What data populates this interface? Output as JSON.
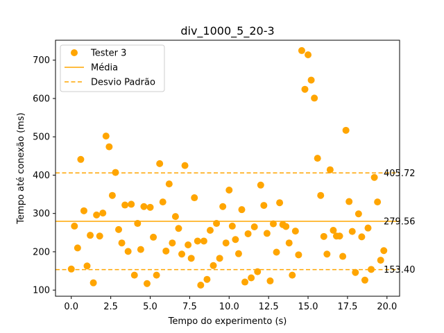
{
  "chart_data": {
    "type": "scatter",
    "title": "div_1000_5_20-3",
    "xlabel": "Tempo do experimento (s)",
    "ylabel": "Tempo até conexão (ms)",
    "xlim": [
      -1.0,
      20.8
    ],
    "ylim": [
      84,
      752
    ],
    "xticks": [
      0.0,
      2.5,
      5.0,
      7.5,
      10.0,
      12.5,
      15.0,
      17.5,
      20.0
    ],
    "xtick_labels": [
      "0.0",
      "2.5",
      "5.0",
      "7.5",
      "10.0",
      "12.5",
      "15.0",
      "17.5",
      "20.0"
    ],
    "yticks": [
      100,
      200,
      300,
      400,
      500,
      600,
      700
    ],
    "ytick_labels": [
      "100",
      "200",
      "300",
      "400",
      "500",
      "600",
      "700"
    ],
    "grid": false,
    "legend_position": "top-left",
    "legend": {
      "scatter_label": "Tester 3",
      "mean_label": "Média",
      "std_label": "Desvio Padrão"
    },
    "colors": {
      "series": "#ffa500",
      "lines": "#ffa500"
    },
    "reference_lines": {
      "mean": 279.56,
      "upper": 405.72,
      "lower": 153.4,
      "mean_label": "279.56",
      "upper_label": "405.72",
      "lower_label": "153.40"
    },
    "series": [
      {
        "name": "Tester 3",
        "points": [
          [
            0.0,
            155
          ],
          [
            0.2,
            267
          ],
          [
            0.4,
            210
          ],
          [
            0.6,
            441
          ],
          [
            0.8,
            307
          ],
          [
            1.0,
            163
          ],
          [
            1.2,
            243
          ],
          [
            1.4,
            119
          ],
          [
            1.6,
            296
          ],
          [
            1.8,
            241
          ],
          [
            2.0,
            301
          ],
          [
            2.2,
            502
          ],
          [
            2.4,
            474
          ],
          [
            2.6,
            347
          ],
          [
            2.8,
            407
          ],
          [
            3.0,
            258
          ],
          [
            3.2,
            223
          ],
          [
            3.4,
            322
          ],
          [
            3.6,
            201
          ],
          [
            3.8,
            324
          ],
          [
            4.0,
            139
          ],
          [
            4.2,
            274
          ],
          [
            4.4,
            206
          ],
          [
            4.6,
            318
          ],
          [
            4.8,
            117
          ],
          [
            5.0,
            316
          ],
          [
            5.2,
            238
          ],
          [
            5.4,
            139
          ],
          [
            5.6,
            430
          ],
          [
            5.8,
            330
          ],
          [
            6.0,
            202
          ],
          [
            6.2,
            377
          ],
          [
            6.4,
            223
          ],
          [
            6.6,
            292
          ],
          [
            6.8,
            261
          ],
          [
            7.0,
            194
          ],
          [
            7.2,
            425
          ],
          [
            7.4,
            218
          ],
          [
            7.6,
            183
          ],
          [
            7.8,
            341
          ],
          [
            8.0,
            228
          ],
          [
            8.2,
            113
          ],
          [
            8.4,
            228
          ],
          [
            8.6,
            128
          ],
          [
            8.8,
            256
          ],
          [
            9.0,
            164
          ],
          [
            9.2,
            274
          ],
          [
            9.4,
            183
          ],
          [
            9.6,
            318
          ],
          [
            9.8,
            223
          ],
          [
            10.0,
            361
          ],
          [
            10.2,
            267
          ],
          [
            10.4,
            232
          ],
          [
            10.6,
            195
          ],
          [
            10.8,
            310
          ],
          [
            11.0,
            121
          ],
          [
            11.2,
            247
          ],
          [
            11.4,
            132
          ],
          [
            11.6,
            265
          ],
          [
            11.8,
            148
          ],
          [
            12.0,
            374
          ],
          [
            12.2,
            321
          ],
          [
            12.4,
            248
          ],
          [
            12.6,
            124
          ],
          [
            12.8,
            273
          ],
          [
            13.0,
            199
          ],
          [
            13.2,
            328
          ],
          [
            13.4,
            271
          ],
          [
            13.6,
            266
          ],
          [
            13.8,
            223
          ],
          [
            14.0,
            139
          ],
          [
            14.2,
            254
          ],
          [
            14.4,
            192
          ],
          [
            14.6,
            725
          ],
          [
            14.8,
            624
          ],
          [
            15.0,
            714
          ],
          [
            15.2,
            648
          ],
          [
            15.4,
            601
          ],
          [
            15.6,
            444
          ],
          [
            15.8,
            347
          ],
          [
            16.0,
            240
          ],
          [
            16.2,
            194
          ],
          [
            16.4,
            414
          ],
          [
            16.6,
            256
          ],
          [
            16.8,
            241
          ],
          [
            17.0,
            241
          ],
          [
            17.2,
            188
          ],
          [
            17.4,
            517
          ],
          [
            17.6,
            331
          ],
          [
            17.8,
            253
          ],
          [
            18.0,
            146
          ],
          [
            18.2,
            299
          ],
          [
            18.4,
            239
          ],
          [
            18.6,
            126
          ],
          [
            18.8,
            262
          ],
          [
            19.0,
            154
          ],
          [
            19.2,
            394
          ],
          [
            19.4,
            330
          ],
          [
            19.6,
            178
          ],
          [
            19.8,
            203
          ]
        ]
      }
    ]
  }
}
